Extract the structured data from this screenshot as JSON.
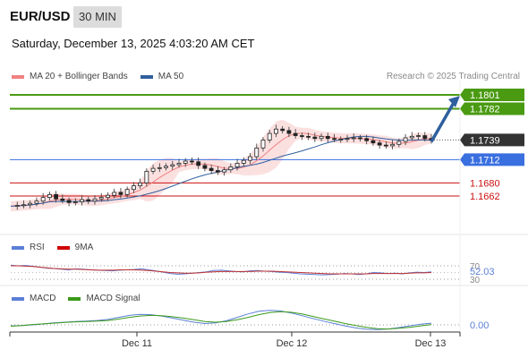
{
  "header": {
    "symbol": "EUR/USD",
    "timeframe": "30 MIN",
    "datetime": "Saturday, December 13, 2025 4:03:20 AM CET",
    "credit": "Research © 2025 Trading Central"
  },
  "legends": {
    "price": [
      {
        "label": "MA 20 + Bollinger Bands",
        "color": "#f08080"
      },
      {
        "label": "MA 50",
        "color": "#2f5f9e"
      }
    ],
    "rsi": [
      {
        "label": "RSI",
        "color": "#5b7fd6"
      },
      {
        "label": "9MA",
        "color": "#d00000"
      }
    ],
    "macd": [
      {
        "label": "MACD",
        "color": "#5b7fd6"
      },
      {
        "label": "MACD Signal",
        "color": "#3a9a1a"
      }
    ]
  },
  "chart_data": {
    "type": "candlestick",
    "ylim": [
      1.1635,
      1.1815
    ],
    "price_levels": [
      {
        "label": "1.1801",
        "value": 1.1801,
        "color": "#4a9a12",
        "kind": "target"
      },
      {
        "label": "1.1782",
        "value": 1.1782,
        "color": "#4a9a12",
        "kind": "target"
      },
      {
        "label": "1.1739",
        "value": 1.1739,
        "color": "#333333",
        "kind": "current"
      },
      {
        "label": "1.1712",
        "value": 1.1712,
        "color": "#3a6fe0",
        "kind": "pivot"
      },
      {
        "label": "1.1680",
        "value": 1.168,
        "color": "#cc1111",
        "kind": "support"
      },
      {
        "label": "1.1662",
        "value": 1.1662,
        "color": "#cc1111",
        "kind": "support"
      }
    ],
    "close_series": [
      1.1648,
      1.1649,
      1.165,
      1.1652,
      1.1655,
      1.166,
      1.1664,
      1.1658,
      1.1656,
      1.1653,
      1.1654,
      1.1657,
      1.1655,
      1.1658,
      1.166,
      1.1663,
      1.1667,
      1.1664,
      1.1671,
      1.1676,
      1.168,
      1.1696,
      1.17,
      1.1701,
      1.1703,
      1.1705,
      1.1707,
      1.171,
      1.1709,
      1.1704,
      1.17,
      1.1697,
      1.1695,
      1.1698,
      1.1702,
      1.1707,
      1.1711,
      1.1716,
      1.1728,
      1.1739,
      1.1748,
      1.1754,
      1.1752,
      1.1748,
      1.1745,
      1.1744,
      1.1743,
      1.1741,
      1.1744,
      1.1741,
      1.174,
      1.174,
      1.1741,
      1.1742,
      1.1741,
      1.1738,
      1.1735,
      1.1732,
      1.1731,
      1.1733,
      1.1737,
      1.1742,
      1.1744,
      1.1745,
      1.1741,
      1.1739
    ],
    "projection": {
      "from": 1.1739,
      "to": 1.1801
    },
    "rsi": {
      "current": "52.03",
      "levels": [
        {
          "label": "70",
          "value": 70
        },
        {
          "label": "30",
          "value": 30
        }
      ],
      "series": [
        72,
        70,
        71,
        69,
        66,
        63,
        62,
        60,
        58,
        61,
        60,
        58,
        57,
        56,
        55,
        57,
        58,
        59,
        61,
        58,
        55,
        51,
        47,
        45,
        46,
        48,
        50,
        52,
        56,
        57,
        55,
        53,
        52,
        55,
        56,
        54,
        53,
        51,
        50,
        48,
        46,
        45,
        44,
        43,
        44,
        45,
        47,
        46,
        44,
        46,
        50,
        49,
        47,
        48,
        46,
        49,
        51,
        50,
        52
      ],
      "ma9": [
        70,
        70,
        69,
        68,
        66,
        64,
        62,
        61,
        60,
        60,
        59,
        58,
        57,
        57,
        57,
        58,
        58,
        58,
        57,
        56,
        54,
        52,
        50,
        49,
        48,
        48,
        49,
        51,
        52,
        53,
        53,
        53,
        53,
        53,
        54,
        54,
        54,
        53,
        52,
        51,
        50,
        49,
        48,
        47,
        46,
        46,
        46,
        46,
        46,
        46,
        47,
        47,
        47,
        47,
        47,
        48,
        49,
        49,
        50
      ]
    },
    "macd": {
      "current": "0.00",
      "macd_series": [
        -0.0003,
        -0.0002,
        0.0,
        0.0003,
        0.0006,
        0.0008,
        0.001,
        0.0011,
        0.0013,
        0.0016,
        0.0022,
        0.0028,
        0.0031,
        0.003,
        0.0026,
        0.002,
        0.0014,
        0.0008,
        0.0004,
        0.0006,
        0.0012,
        0.0022,
        0.0032,
        0.004,
        0.0043,
        0.0041,
        0.0035,
        0.0027,
        0.0019,
        0.0011,
        0.0004,
        -0.0003,
        -0.0009,
        -0.0013,
        -0.0014,
        -0.0012,
        -0.0008,
        -0.0003,
        0.0002,
        0.0005
      ],
      "signal_series": [
        -0.0004,
        -0.0002,
        0.0001,
        0.0003,
        0.0005,
        0.0007,
        0.0009,
        0.001,
        0.0011,
        0.0013,
        0.0017,
        0.0022,
        0.0026,
        0.0028,
        0.0027,
        0.0024,
        0.002,
        0.0015,
        0.001,
        0.0008,
        0.001,
        0.0015,
        0.0022,
        0.003,
        0.0036,
        0.0039,
        0.0037,
        0.0032,
        0.0025,
        0.0018,
        0.0011,
        0.0004,
        -0.0002,
        -0.0007,
        -0.0011,
        -0.0012,
        -0.001,
        -0.0007,
        -0.0003,
        0.0001
      ]
    },
    "x_ticks": [
      "Dec 11",
      "Dec 12",
      "Dec 13"
    ]
  }
}
